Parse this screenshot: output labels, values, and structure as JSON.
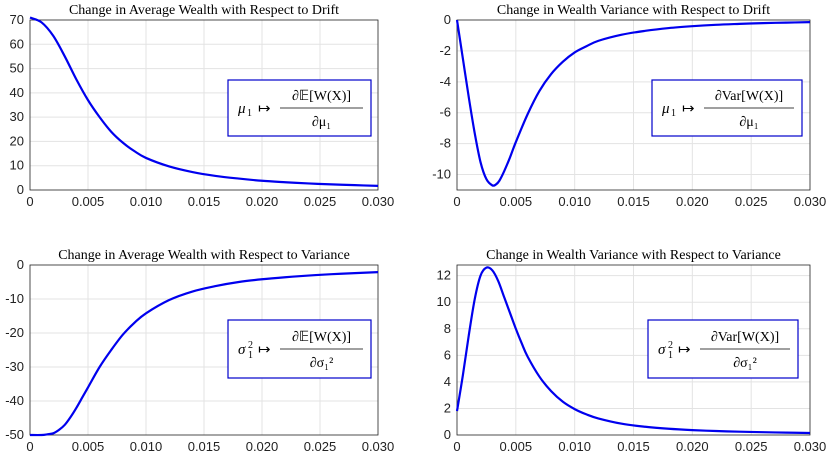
{
  "chart_data": [
    {
      "type": "line",
      "title": "Change in Average Wealth with Respect to Drift",
      "xlabel": "",
      "ylabel": "",
      "xlim": [
        0,
        0.03
      ],
      "ylim": [
        0,
        70
      ],
      "xticks": [
        "0",
        "0.005",
        "0.010",
        "0.015",
        "0.020",
        "0.025",
        "0.030"
      ],
      "yticks": [
        "0",
        "10",
        "20",
        "30",
        "40",
        "50",
        "60",
        "70"
      ],
      "grid": true,
      "legend_position": "right",
      "legend_latex": "\\mu_1 \\mapsto \\frac{\\partial \\mathbb{E}[W(\\mathbf{X})]}{\\partial \\mu_1}",
      "color": "#0000ee",
      "series": [
        {
          "x": [
            0,
            0.001,
            0.002,
            0.003,
            0.004,
            0.005,
            0.006,
            0.007,
            0.008,
            0.009,
            0.01,
            0.012,
            0.014,
            0.016,
            0.018,
            0.02,
            0.022,
            0.024,
            0.026,
            0.028,
            0.03
          ],
          "values": [
            71,
            69,
            63.5,
            55,
            45.5,
            37,
            30,
            24,
            19.5,
            16,
            13.2,
            9.7,
            7.4,
            5.8,
            4.7,
            3.8,
            3.2,
            2.7,
            2.3,
            2.0,
            1.7
          ]
        }
      ]
    },
    {
      "type": "line",
      "title": "Change in Wealth Variance with Respect to Drift",
      "xlabel": "",
      "ylabel": "",
      "xlim": [
        0,
        0.03
      ],
      "ylim": [
        -11,
        0
      ],
      "xticks": [
        "0",
        "0.005",
        "0.010",
        "0.015",
        "0.020",
        "0.025",
        "0.030"
      ],
      "yticks": [
        "0",
        "-2",
        "-4",
        "-6",
        "-8",
        "-10"
      ],
      "grid": true,
      "legend_position": "right",
      "legend_latex": "\\mu_1 \\mapsto \\frac{\\partial \\mathrm{Var}[W(\\mathbf{X})]}{\\partial \\mu_1}",
      "color": "#0000ee",
      "series": [
        {
          "x": [
            0,
            0.0005,
            0.001,
            0.0015,
            0.002,
            0.0025,
            0.003,
            0.0033,
            0.0036,
            0.004,
            0.0045,
            0.005,
            0.006,
            0.007,
            0.008,
            0.009,
            0.01,
            0.011,
            0.012,
            0.014,
            0.016,
            0.018,
            0.02,
            0.022,
            0.024,
            0.026,
            0.028,
            0.03
          ],
          "values": [
            0,
            -2.5,
            -5,
            -7.3,
            -9.2,
            -10.3,
            -10.7,
            -10.65,
            -10.4,
            -9.8,
            -8.9,
            -7.9,
            -6.1,
            -4.6,
            -3.5,
            -2.7,
            -2.1,
            -1.7,
            -1.35,
            -0.95,
            -0.7,
            -0.52,
            -0.4,
            -0.31,
            -0.25,
            -0.2,
            -0.17,
            -0.14
          ]
        }
      ]
    },
    {
      "type": "line",
      "title": "Change in Average Wealth with Respect to Variance",
      "xlabel": "",
      "ylabel": "",
      "xlim": [
        0,
        0.03
      ],
      "ylim": [
        -50,
        0
      ],
      "xticks": [
        "0",
        "0.005",
        "0.010",
        "0.015",
        "0.020",
        "0.025",
        "0.030"
      ],
      "yticks": [
        "0",
        "-10",
        "-20",
        "-30",
        "-40",
        "-50"
      ],
      "grid": true,
      "legend_position": "right",
      "legend_latex": "\\sigma_1^2 \\mapsto \\frac{\\partial \\mathbb{E}[W(\\mathbf{X})]}{\\partial \\sigma_1^2}",
      "color": "#0000ee",
      "series": [
        {
          "x": [
            0,
            0.001,
            0.0015,
            0.002,
            0.0025,
            0.003,
            0.0035,
            0.004,
            0.0045,
            0.005,
            0.006,
            0.007,
            0.008,
            0.009,
            0.01,
            0.012,
            0.014,
            0.016,
            0.018,
            0.02,
            0.022,
            0.024,
            0.026,
            0.028,
            0.03
          ],
          "values": [
            -50,
            -50,
            -49.8,
            -49.5,
            -48.5,
            -47,
            -44.7,
            -42,
            -39,
            -36,
            -30,
            -25,
            -20.5,
            -17,
            -14.2,
            -10.3,
            -7.8,
            -6.2,
            -5.0,
            -4.2,
            -3.6,
            -3.1,
            -2.7,
            -2.4,
            -2.1
          ]
        }
      ]
    },
    {
      "type": "line",
      "title": "Change in Wealth Variance with Respect to Variance",
      "xlabel": "",
      "ylabel": "",
      "xlim": [
        0,
        0.03
      ],
      "ylim": [
        0,
        12.8
      ],
      "xticks": [
        "0",
        "0.005",
        "0.010",
        "0.015",
        "0.020",
        "0.025",
        "0.030"
      ],
      "yticks": [
        "0",
        "2",
        "4",
        "6",
        "8",
        "10",
        "12"
      ],
      "grid": true,
      "legend_position": "right",
      "legend_latex": "\\sigma_1^2 \\mapsto \\frac{\\partial \\mathrm{Var}[W(\\mathbf{X})]}{\\partial \\sigma_1^2}",
      "color": "#0000ee",
      "series": [
        {
          "x": [
            0,
            0.0005,
            0.001,
            0.0015,
            0.002,
            0.0025,
            0.003,
            0.0035,
            0.004,
            0.0045,
            0.005,
            0.0055,
            0.006,
            0.007,
            0.008,
            0.009,
            0.01,
            0.011,
            0.012,
            0.014,
            0.016,
            0.018,
            0.02,
            0.022,
            0.024,
            0.026,
            0.028,
            0.03
          ],
          "values": [
            1.8,
            4.5,
            7.5,
            10.2,
            12.0,
            12.6,
            12.4,
            11.6,
            10.4,
            9.2,
            8.0,
            6.9,
            5.9,
            4.4,
            3.3,
            2.5,
            1.95,
            1.55,
            1.25,
            0.85,
            0.62,
            0.47,
            0.37,
            0.3,
            0.25,
            0.21,
            0.18,
            0.15
          ]
        }
      ]
    }
  ]
}
